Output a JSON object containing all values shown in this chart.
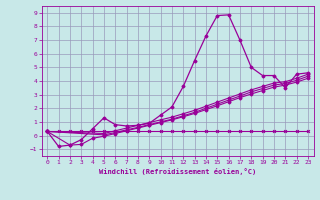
{
  "xlabel": "Windchill (Refroidissement éolien,°C)",
  "bg_color": "#c8e8e8",
  "grid_color": "#9999bb",
  "line_color": "#990099",
  "xlim": [
    -0.5,
    23.5
  ],
  "ylim": [
    -1.5,
    9.5
  ],
  "xticks": [
    0,
    1,
    2,
    3,
    4,
    5,
    6,
    7,
    8,
    9,
    10,
    11,
    12,
    13,
    14,
    15,
    16,
    17,
    18,
    19,
    20,
    21,
    22,
    23
  ],
  "yticks": [
    -1,
    0,
    1,
    2,
    3,
    4,
    5,
    6,
    7,
    8,
    9
  ],
  "line1_x": [
    0,
    1,
    2,
    3,
    4,
    5,
    6,
    7,
    8,
    9,
    10,
    11,
    12,
    13,
    14,
    15,
    16,
    17,
    18,
    19,
    20,
    21,
    22,
    23
  ],
  "line1_y": [
    0.3,
    0.3,
    0.3,
    0.3,
    0.3,
    0.3,
    0.3,
    0.3,
    0.3,
    0.3,
    0.3,
    0.3,
    0.3,
    0.3,
    0.3,
    0.3,
    0.3,
    0.3,
    0.3,
    0.3,
    0.3,
    0.3,
    0.3,
    0.3
  ],
  "line2_x": [
    0,
    1,
    2,
    3,
    4,
    5,
    6,
    7,
    8,
    9,
    10,
    11,
    12,
    13,
    14,
    15,
    16,
    17,
    18,
    19,
    20,
    21,
    22,
    23
  ],
  "line2_y": [
    0.3,
    -0.8,
    -0.7,
    -0.3,
    0.5,
    1.3,
    0.8,
    0.7,
    0.75,
    0.9,
    1.5,
    2.1,
    3.6,
    5.5,
    7.3,
    8.8,
    8.85,
    7.0,
    5.0,
    4.4,
    4.4,
    3.5,
    4.5,
    4.6
  ],
  "line3_x": [
    0,
    5,
    6,
    7,
    8,
    9,
    10,
    11,
    12,
    13,
    14,
    15,
    16,
    17,
    18,
    19,
    20,
    21,
    22,
    23
  ],
  "line3_y": [
    0.3,
    0.15,
    0.35,
    0.55,
    0.75,
    0.95,
    1.15,
    1.35,
    1.6,
    1.85,
    2.15,
    2.45,
    2.75,
    3.05,
    3.35,
    3.6,
    3.85,
    3.95,
    4.2,
    4.5
  ],
  "line4_x": [
    0,
    5,
    6,
    7,
    8,
    9,
    10,
    11,
    12,
    13,
    14,
    15,
    16,
    17,
    18,
    19,
    20,
    21,
    22,
    23
  ],
  "line4_y": [
    0.3,
    0.05,
    0.22,
    0.42,
    0.6,
    0.8,
    1.0,
    1.2,
    1.45,
    1.7,
    2.0,
    2.3,
    2.6,
    2.9,
    3.2,
    3.45,
    3.7,
    3.82,
    4.05,
    4.35
  ],
  "line5_x": [
    0,
    2,
    3,
    4,
    5,
    6,
    7,
    8,
    9,
    10,
    11,
    12,
    13,
    14,
    15,
    16,
    17,
    18,
    19,
    20,
    21,
    22,
    23
  ],
  "line5_y": [
    0.3,
    -0.7,
    -0.65,
    -0.2,
    -0.05,
    0.15,
    0.35,
    0.55,
    0.75,
    0.95,
    1.15,
    1.38,
    1.62,
    1.9,
    2.18,
    2.48,
    2.78,
    3.05,
    3.3,
    3.55,
    3.7,
    3.92,
    4.2
  ]
}
